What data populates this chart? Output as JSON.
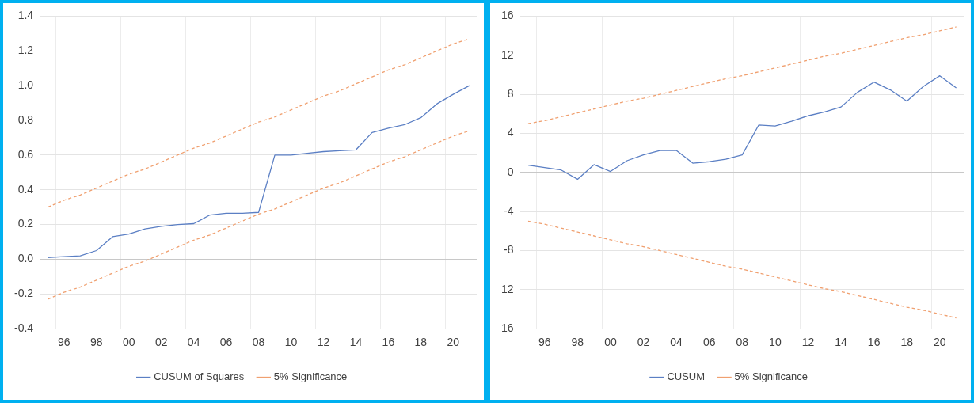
{
  "chart_data": [
    {
      "type": "line",
      "categories": [
        null,
        "96",
        null,
        "98",
        null,
        "00",
        null,
        "02",
        null,
        "04",
        null,
        "06",
        null,
        "08",
        null,
        "10",
        null,
        "12",
        null,
        "14",
        null,
        "16",
        null,
        "18",
        null,
        "20",
        null
      ],
      "series": [
        {
          "name": "CUSUM of Squares",
          "color": "#5b7fc4",
          "values": [
            0.01,
            0.015,
            0.02,
            0.05,
            0.13,
            0.145,
            0.175,
            0.19,
            0.2,
            0.205,
            0.255,
            0.265,
            0.265,
            0.27,
            0.6,
            0.6,
            0.61,
            0.62,
            0.625,
            0.63,
            0.73,
            0.755,
            0.775,
            0.815,
            0.895,
            0.95,
            1.0
          ]
        },
        {
          "name": "5% Significance",
          "color": "#f0a070",
          "line_style": "dashed",
          "values": [
            0.3,
            0.34,
            0.37,
            0.41,
            0.45,
            0.49,
            0.52,
            0.56,
            0.6,
            0.64,
            0.67,
            0.71,
            0.75,
            0.79,
            0.82,
            0.86,
            0.9,
            0.94,
            0.97,
            1.01,
            1.05,
            1.09,
            1.12,
            1.16,
            1.2,
            1.24,
            1.27
          ]
        },
        {
          "color": "#f0a070",
          "line_style": "dashed",
          "values": [
            -0.23,
            -0.19,
            -0.16,
            -0.12,
            -0.08,
            -0.04,
            -0.01,
            0.03,
            0.07,
            0.11,
            0.14,
            0.18,
            0.22,
            0.26,
            0.29,
            0.33,
            0.37,
            0.41,
            0.44,
            0.48,
            0.52,
            0.56,
            0.59,
            0.63,
            0.67,
            0.71,
            0.74
          ]
        }
      ],
      "ylim": [
        -0.4,
        1.4
      ],
      "yticks": [
        -0.4,
        -0.2,
        {
          "value": 0,
          "label": "0.0"
        },
        0.2,
        0.4,
        0.6,
        0.8,
        {
          "value": 1,
          "label": "1.0"
        },
        1.2,
        1.4
      ],
      "grid": true,
      "legend": "bottom",
      "marker": "none"
    },
    {
      "type": "line",
      "categories": [
        null,
        "96",
        null,
        "98",
        null,
        "00",
        null,
        "02",
        null,
        "04",
        null,
        "06",
        null,
        "08",
        null,
        "10",
        null,
        "12",
        null,
        "14",
        null,
        "16",
        null,
        "18",
        null,
        "20",
        null
      ],
      "series": [
        {
          "name": "CUSUM",
          "color": "#5b7fc4",
          "values": [
            0.75,
            0.5,
            0.25,
            -0.7,
            0.8,
            0.1,
            1.2,
            1.8,
            2.25,
            2.25,
            0.95,
            1.1,
            1.35,
            1.8,
            4.85,
            4.75,
            5.25,
            5.8,
            6.2,
            6.7,
            8.2,
            9.25,
            8.45,
            7.3,
            8.8,
            9.9,
            8.65
          ]
        },
        {
          "name": "5% Significance",
          "color": "#f0a070",
          "line_style": "dashed",
          "values": [
            5.0,
            5.3,
            5.7,
            6.1,
            6.5,
            6.9,
            7.3,
            7.6,
            8.0,
            8.4,
            8.8,
            9.2,
            9.6,
            9.9,
            10.3,
            10.7,
            11.1,
            11.5,
            11.9,
            12.2,
            12.6,
            13.0,
            13.4,
            13.8,
            14.1,
            14.5,
            14.9
          ]
        },
        {
          "color": "#f0a070",
          "line_style": "dashed",
          "values": [
            -5.0,
            -5.3,
            -5.7,
            -6.1,
            -6.5,
            -6.9,
            -7.3,
            -7.6,
            -8.0,
            -8.4,
            -8.8,
            -9.2,
            -9.6,
            -9.9,
            -10.3,
            -10.7,
            -11.1,
            -11.5,
            -11.9,
            -12.2,
            -12.6,
            -13.0,
            -13.4,
            -13.8,
            -14.1,
            -14.5,
            -14.9
          ]
        }
      ],
      "ylim": [
        -16,
        16
      ],
      "yticks": [
        {
          "value": -16,
          "label": "16"
        },
        {
          "value": -12,
          "label": "12"
        },
        -8,
        -4,
        0,
        4,
        8,
        12,
        16
      ],
      "grid": true,
      "legend": "bottom",
      "marker": "none"
    }
  ]
}
